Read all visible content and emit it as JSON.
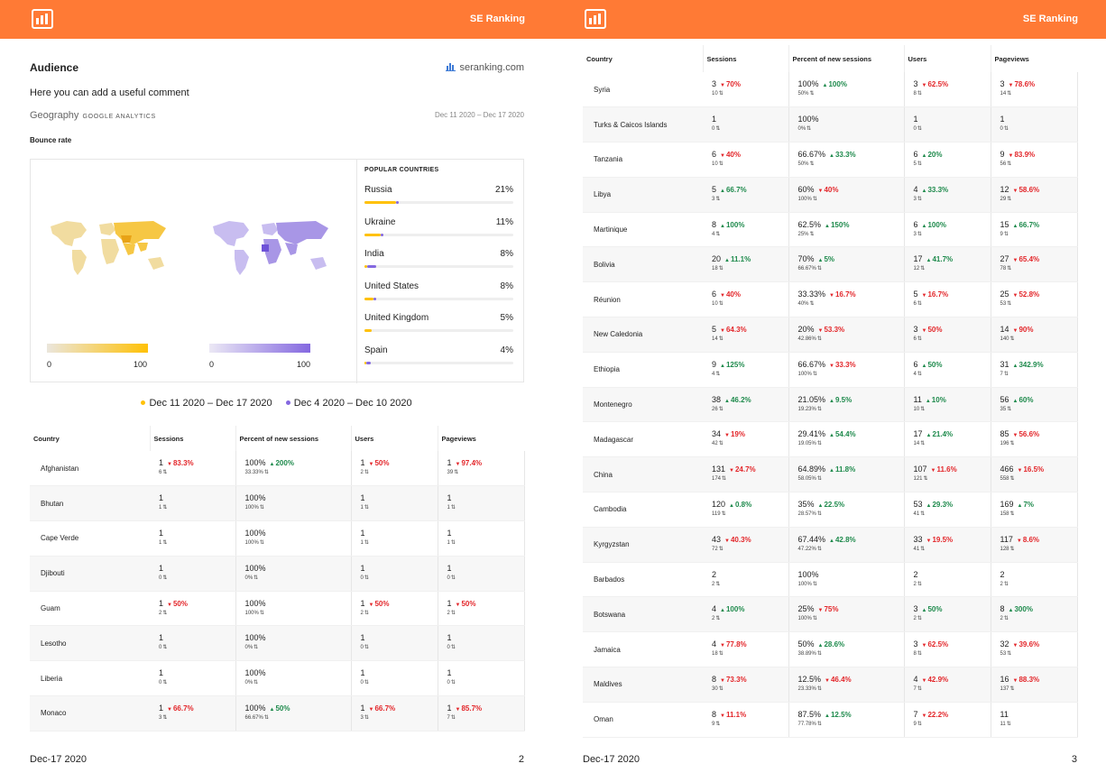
{
  "brand": "SE Ranking",
  "left_page": {
    "section_title": "Audience",
    "site": "seranking.com",
    "comment": "Here you can add a useful comment",
    "geography_label": "Geography",
    "geography_source": "GOOGLE ANALYTICS",
    "date_range": "Dec 11 2020 – Dec 17 2020",
    "metric": "Bounce rate",
    "scale_min": "0",
    "scale_max": "100",
    "popular_title": "POPULAR COUNTRIES",
    "popular": [
      {
        "name": "Russia",
        "pct": "21%",
        "current_fill": 0.21,
        "previous_fill": 0.01
      },
      {
        "name": "Ukraine",
        "pct": "11%",
        "current_fill": 0.11,
        "previous_fill": 0.01
      },
      {
        "name": "India",
        "pct": "8%",
        "current_fill": 0.02,
        "previous_fill": 0.06
      },
      {
        "name": "United States",
        "pct": "8%",
        "current_fill": 0.06,
        "previous_fill": 0.02
      },
      {
        "name": "United Kingdom",
        "pct": "5%",
        "current_fill": 0.05,
        "previous_fill": 0.0
      },
      {
        "name": "Spain",
        "pct": "4%",
        "current_fill": 0.01,
        "previous_fill": 0.03
      }
    ],
    "legend": {
      "current": "Dec 11 2020 – Dec 17 2020",
      "previous": "Dec 4 2020 – Dec 10 2020"
    },
    "footer_date": "Dec-17 2020",
    "page_number": "2"
  },
  "right_page": {
    "footer_date": "Dec-17 2020",
    "page_number": "3"
  },
  "colors": {
    "header": "#ff7a35",
    "current_series": "#ffc107",
    "previous_series": "#8468e0",
    "delta_up": "#1e8a4c",
    "delta_down": "#e3262a"
  },
  "table_headers": [
    "Country",
    "Sessions",
    "Percent of new sessions",
    "Users",
    "Pageviews"
  ],
  "table_left_rows": [
    {
      "country": "Afghanistan",
      "cells": [
        {
          "v": "1",
          "d": "83.3%",
          "dir": "down",
          "p": "6"
        },
        {
          "v": "100%",
          "d": "200%",
          "dir": "up",
          "p": "33.33%"
        },
        {
          "v": "1",
          "d": "50%",
          "dir": "down",
          "p": "2"
        },
        {
          "v": "1",
          "d": "97.4%",
          "dir": "down",
          "p": "39"
        }
      ]
    },
    {
      "country": "Bhutan",
      "cells": [
        {
          "v": "1",
          "d": "",
          "dir": "",
          "p": "1"
        },
        {
          "v": "100%",
          "d": "",
          "dir": "",
          "p": "100%"
        },
        {
          "v": "1",
          "d": "",
          "dir": "",
          "p": "1"
        },
        {
          "v": "1",
          "d": "",
          "dir": "",
          "p": "1"
        }
      ]
    },
    {
      "country": "Cape Verde",
      "cells": [
        {
          "v": "1",
          "d": "",
          "dir": "",
          "p": "1"
        },
        {
          "v": "100%",
          "d": "",
          "dir": "",
          "p": "100%"
        },
        {
          "v": "1",
          "d": "",
          "dir": "",
          "p": "1"
        },
        {
          "v": "1",
          "d": "",
          "dir": "",
          "p": "1"
        }
      ]
    },
    {
      "country": "Djibouti",
      "cells": [
        {
          "v": "1",
          "d": "",
          "dir": "",
          "p": "0"
        },
        {
          "v": "100%",
          "d": "",
          "dir": "",
          "p": "0%"
        },
        {
          "v": "1",
          "d": "",
          "dir": "",
          "p": "0"
        },
        {
          "v": "1",
          "d": "",
          "dir": "",
          "p": "0"
        }
      ]
    },
    {
      "country": "Guam",
      "cells": [
        {
          "v": "1",
          "d": "50%",
          "dir": "down",
          "p": "2"
        },
        {
          "v": "100%",
          "d": "",
          "dir": "",
          "p": "100%"
        },
        {
          "v": "1",
          "d": "50%",
          "dir": "down",
          "p": "2"
        },
        {
          "v": "1",
          "d": "50%",
          "dir": "down",
          "p": "2"
        }
      ]
    },
    {
      "country": "Lesotho",
      "cells": [
        {
          "v": "1",
          "d": "",
          "dir": "",
          "p": "0"
        },
        {
          "v": "100%",
          "d": "",
          "dir": "",
          "p": "0%"
        },
        {
          "v": "1",
          "d": "",
          "dir": "",
          "p": "0"
        },
        {
          "v": "1",
          "d": "",
          "dir": "",
          "p": "0"
        }
      ]
    },
    {
      "country": "Liberia",
      "cells": [
        {
          "v": "1",
          "d": "",
          "dir": "",
          "p": "0"
        },
        {
          "v": "100%",
          "d": "",
          "dir": "",
          "p": "0%"
        },
        {
          "v": "1",
          "d": "",
          "dir": "",
          "p": "0"
        },
        {
          "v": "1",
          "d": "",
          "dir": "",
          "p": "0"
        }
      ]
    },
    {
      "country": "Monaco",
      "cells": [
        {
          "v": "1",
          "d": "66.7%",
          "dir": "down",
          "p": "3"
        },
        {
          "v": "100%",
          "d": "50%",
          "dir": "up",
          "p": "66.67%"
        },
        {
          "v": "1",
          "d": "66.7%",
          "dir": "down",
          "p": "3"
        },
        {
          "v": "1",
          "d": "85.7%",
          "dir": "down",
          "p": "7"
        }
      ]
    }
  ],
  "table_right_rows": [
    {
      "country": "Syria",
      "cells": [
        {
          "v": "3",
          "d": "70%",
          "dir": "down",
          "p": "10"
        },
        {
          "v": "100%",
          "d": "100%",
          "dir": "up",
          "p": "50%"
        },
        {
          "v": "3",
          "d": "62.5%",
          "dir": "down",
          "p": "8"
        },
        {
          "v": "3",
          "d": "78.6%",
          "dir": "down",
          "p": "14"
        }
      ]
    },
    {
      "country": "Turks & Caicos Islands",
      "cells": [
        {
          "v": "1",
          "d": "",
          "dir": "",
          "p": "0"
        },
        {
          "v": "100%",
          "d": "",
          "dir": "",
          "p": "0%"
        },
        {
          "v": "1",
          "d": "",
          "dir": "",
          "p": "0"
        },
        {
          "v": "1",
          "d": "",
          "dir": "",
          "p": "0"
        }
      ]
    },
    {
      "country": "Tanzania",
      "cells": [
        {
          "v": "6",
          "d": "40%",
          "dir": "down",
          "p": "10"
        },
        {
          "v": "66.67%",
          "d": "33.3%",
          "dir": "up",
          "p": "50%"
        },
        {
          "v": "6",
          "d": "20%",
          "dir": "up",
          "p": "5"
        },
        {
          "v": "9",
          "d": "83.9%",
          "dir": "down",
          "p": "56"
        }
      ]
    },
    {
      "country": "Libya",
      "cells": [
        {
          "v": "5",
          "d": "66.7%",
          "dir": "up",
          "p": "3"
        },
        {
          "v": "60%",
          "d": "40%",
          "dir": "down",
          "p": "100%"
        },
        {
          "v": "4",
          "d": "33.3%",
          "dir": "up",
          "p": "3"
        },
        {
          "v": "12",
          "d": "58.6%",
          "dir": "down",
          "p": "29"
        }
      ]
    },
    {
      "country": "Martinique",
      "cells": [
        {
          "v": "8",
          "d": "100%",
          "dir": "up",
          "p": "4"
        },
        {
          "v": "62.5%",
          "d": "150%",
          "dir": "up",
          "p": "25%"
        },
        {
          "v": "6",
          "d": "100%",
          "dir": "up",
          "p": "3"
        },
        {
          "v": "15",
          "d": "66.7%",
          "dir": "up",
          "p": "9"
        }
      ]
    },
    {
      "country": "Bolivia",
      "cells": [
        {
          "v": "20",
          "d": "11.1%",
          "dir": "up",
          "p": "18"
        },
        {
          "v": "70%",
          "d": "5%",
          "dir": "up",
          "p": "66.67%"
        },
        {
          "v": "17",
          "d": "41.7%",
          "dir": "up",
          "p": "12"
        },
        {
          "v": "27",
          "d": "65.4%",
          "dir": "down",
          "p": "78"
        }
      ]
    },
    {
      "country": "Réunion",
      "cells": [
        {
          "v": "6",
          "d": "40%",
          "dir": "down",
          "p": "10"
        },
        {
          "v": "33.33%",
          "d": "16.7%",
          "dir": "down",
          "p": "40%"
        },
        {
          "v": "5",
          "d": "16.7%",
          "dir": "down",
          "p": "6"
        },
        {
          "v": "25",
          "d": "52.8%",
          "dir": "down",
          "p": "53"
        }
      ]
    },
    {
      "country": "New Caledonia",
      "cells": [
        {
          "v": "5",
          "d": "64.3%",
          "dir": "down",
          "p": "14"
        },
        {
          "v": "20%",
          "d": "53.3%",
          "dir": "down",
          "p": "42.86%"
        },
        {
          "v": "3",
          "d": "50%",
          "dir": "down",
          "p": "6"
        },
        {
          "v": "14",
          "d": "90%",
          "dir": "down",
          "p": "140"
        }
      ]
    },
    {
      "country": "Ethiopia",
      "cells": [
        {
          "v": "9",
          "d": "125%",
          "dir": "up",
          "p": "4"
        },
        {
          "v": "66.67%",
          "d": "33.3%",
          "dir": "down",
          "p": "100%"
        },
        {
          "v": "6",
          "d": "50%",
          "dir": "up",
          "p": "4"
        },
        {
          "v": "31",
          "d": "342.9%",
          "dir": "up",
          "p": "7"
        }
      ]
    },
    {
      "country": "Montenegro",
      "cells": [
        {
          "v": "38",
          "d": "46.2%",
          "dir": "up",
          "p": "26"
        },
        {
          "v": "21.05%",
          "d": "9.5%",
          "dir": "up",
          "p": "19.23%"
        },
        {
          "v": "11",
          "d": "10%",
          "dir": "up",
          "p": "10"
        },
        {
          "v": "56",
          "d": "60%",
          "dir": "up",
          "p": "35"
        }
      ]
    },
    {
      "country": "Madagascar",
      "cells": [
        {
          "v": "34",
          "d": "19%",
          "dir": "down",
          "p": "42"
        },
        {
          "v": "29.41%",
          "d": "54.4%",
          "dir": "up",
          "p": "19.05%"
        },
        {
          "v": "17",
          "d": "21.4%",
          "dir": "up",
          "p": "14"
        },
        {
          "v": "85",
          "d": "56.6%",
          "dir": "down",
          "p": "196"
        }
      ]
    },
    {
      "country": "China",
      "cells": [
        {
          "v": "131",
          "d": "24.7%",
          "dir": "down",
          "p": "174"
        },
        {
          "v": "64.89%",
          "d": "11.8%",
          "dir": "up",
          "p": "58.05%"
        },
        {
          "v": "107",
          "d": "11.6%",
          "dir": "down",
          "p": "121"
        },
        {
          "v": "466",
          "d": "16.5%",
          "dir": "down",
          "p": "558"
        }
      ]
    },
    {
      "country": "Cambodia",
      "cells": [
        {
          "v": "120",
          "d": "0.8%",
          "dir": "up",
          "p": "119"
        },
        {
          "v": "35%",
          "d": "22.5%",
          "dir": "up",
          "p": "28.57%"
        },
        {
          "v": "53",
          "d": "29.3%",
          "dir": "up",
          "p": "41"
        },
        {
          "v": "169",
          "d": "7%",
          "dir": "up",
          "p": "158"
        }
      ]
    },
    {
      "country": "Kyrgyzstan",
      "cells": [
        {
          "v": "43",
          "d": "40.3%",
          "dir": "down",
          "p": "72"
        },
        {
          "v": "67.44%",
          "d": "42.8%",
          "dir": "up",
          "p": "47.22%"
        },
        {
          "v": "33",
          "d": "19.5%",
          "dir": "down",
          "p": "41"
        },
        {
          "v": "117",
          "d": "8.6%",
          "dir": "down",
          "p": "128"
        }
      ]
    },
    {
      "country": "Barbados",
      "cells": [
        {
          "v": "2",
          "d": "",
          "dir": "",
          "p": "2"
        },
        {
          "v": "100%",
          "d": "",
          "dir": "",
          "p": "100%"
        },
        {
          "v": "2",
          "d": "",
          "dir": "",
          "p": "2"
        },
        {
          "v": "2",
          "d": "",
          "dir": "",
          "p": "2"
        }
      ]
    },
    {
      "country": "Botswana",
      "cells": [
        {
          "v": "4",
          "d": "100%",
          "dir": "up",
          "p": "2"
        },
        {
          "v": "25%",
          "d": "75%",
          "dir": "down",
          "p": "100%"
        },
        {
          "v": "3",
          "d": "50%",
          "dir": "up",
          "p": "2"
        },
        {
          "v": "8",
          "d": "300%",
          "dir": "up",
          "p": "2"
        }
      ]
    },
    {
      "country": "Jamaica",
      "cells": [
        {
          "v": "4",
          "d": "77.8%",
          "dir": "down",
          "p": "18"
        },
        {
          "v": "50%",
          "d": "28.6%",
          "dir": "up",
          "p": "38.89%"
        },
        {
          "v": "3",
          "d": "62.5%",
          "dir": "down",
          "p": "8"
        },
        {
          "v": "32",
          "d": "39.6%",
          "dir": "down",
          "p": "53"
        }
      ]
    },
    {
      "country": "Maldives",
      "cells": [
        {
          "v": "8",
          "d": "73.3%",
          "dir": "down",
          "p": "30"
        },
        {
          "v": "12.5%",
          "d": "46.4%",
          "dir": "down",
          "p": "23.33%"
        },
        {
          "v": "4",
          "d": "42.9%",
          "dir": "down",
          "p": "7"
        },
        {
          "v": "16",
          "d": "88.3%",
          "dir": "down",
          "p": "137"
        }
      ]
    },
    {
      "country": "Oman",
      "cells": [
        {
          "v": "8",
          "d": "11.1%",
          "dir": "down",
          "p": "9"
        },
        {
          "v": "87.5%",
          "d": "12.5%",
          "dir": "up",
          "p": "77.78%"
        },
        {
          "v": "7",
          "d": "22.2%",
          "dir": "down",
          "p": "9"
        },
        {
          "v": "11",
          "d": "",
          "dir": "",
          "p": "11"
        }
      ]
    }
  ]
}
